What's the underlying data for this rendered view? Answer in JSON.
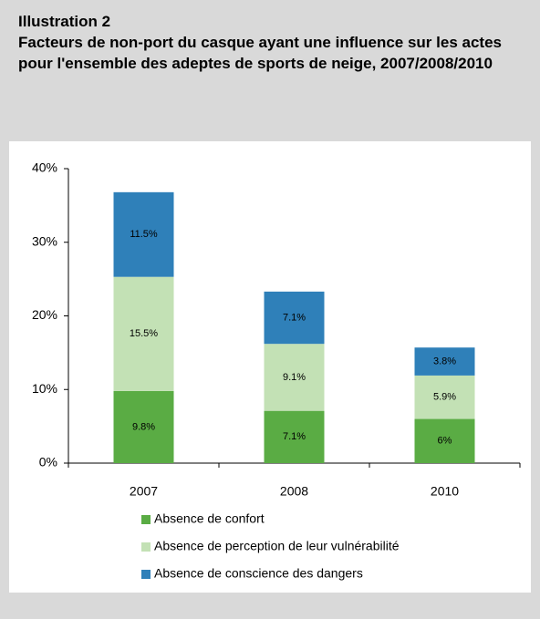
{
  "chart_data": {
    "type": "bar",
    "stacked": true,
    "label": "Illustration 2",
    "title": "Facteurs de non-port du casque ayant une influence sur les actes pour l'ensemble des adeptes de sports de neige, 2007/2008/2010",
    "categories": [
      "2007",
      "2008",
      "2010"
    ],
    "series": [
      {
        "name": "Absence de confort",
        "color": "#5aac44",
        "values": [
          9.8,
          7.1,
          6
        ],
        "value_labels": [
          "9.8%",
          "7.1%",
          "6%"
        ]
      },
      {
        "name": "Absence de perception de leur vulnérabilité",
        "color": "#c3e1b5",
        "values": [
          15.5,
          9.1,
          5.9
        ],
        "value_labels": [
          "15.5%",
          "9.1%",
          "5.9%"
        ]
      },
      {
        "name": "Absence de conscience des dangers",
        "color": "#2f80b9",
        "values": [
          11.5,
          7.1,
          3.8
        ],
        "value_labels": [
          "11.5%",
          "7.1%",
          "3.8%"
        ]
      }
    ],
    "ylim": [
      0,
      40
    ],
    "yticks": [
      {
        "value": 0,
        "label": "0%"
      },
      {
        "value": 10,
        "label": "10%"
      },
      {
        "value": 20,
        "label": "20%"
      },
      {
        "value": 30,
        "label": "30%"
      },
      {
        "value": 40,
        "label": "40%"
      }
    ],
    "grid": false,
    "legend": "bottom"
  }
}
